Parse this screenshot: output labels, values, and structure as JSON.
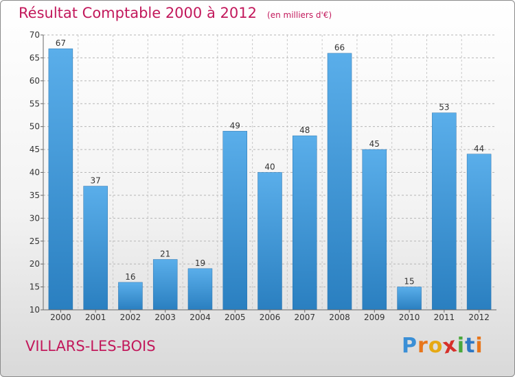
{
  "chart_data": {
    "type": "bar",
    "title": "Résultat Comptable 2000 à 2012",
    "subtitle": "(en milliers d'€)",
    "categories": [
      "2000",
      "2001",
      "2002",
      "2003",
      "2004",
      "2005",
      "2006",
      "2007",
      "2008",
      "2009",
      "2010",
      "2011",
      "2012"
    ],
    "values": [
      67,
      37,
      16,
      21,
      19,
      49,
      40,
      48,
      66,
      45,
      15,
      53,
      44
    ],
    "ylim": [
      10,
      70
    ],
    "yticks": [
      10,
      15,
      20,
      25,
      30,
      35,
      40,
      45,
      50,
      55,
      60,
      65,
      70
    ],
    "grid": true,
    "xlabel": "",
    "ylabel": ""
  },
  "commune": "VILLARS-LES-BOIS",
  "logo": {
    "text": "Proxiti",
    "letter_colors": [
      "#3a8fd6",
      "#e8761b",
      "#e6a914",
      "#d6302a",
      "#4aa83c",
      "#2f78c4",
      "#e8761b"
    ]
  },
  "colors": {
    "title": "#c2185b",
    "bar_top": "#5aaeea",
    "bar_bottom": "#2a7fc0",
    "grid": "#b5b5b5"
  }
}
